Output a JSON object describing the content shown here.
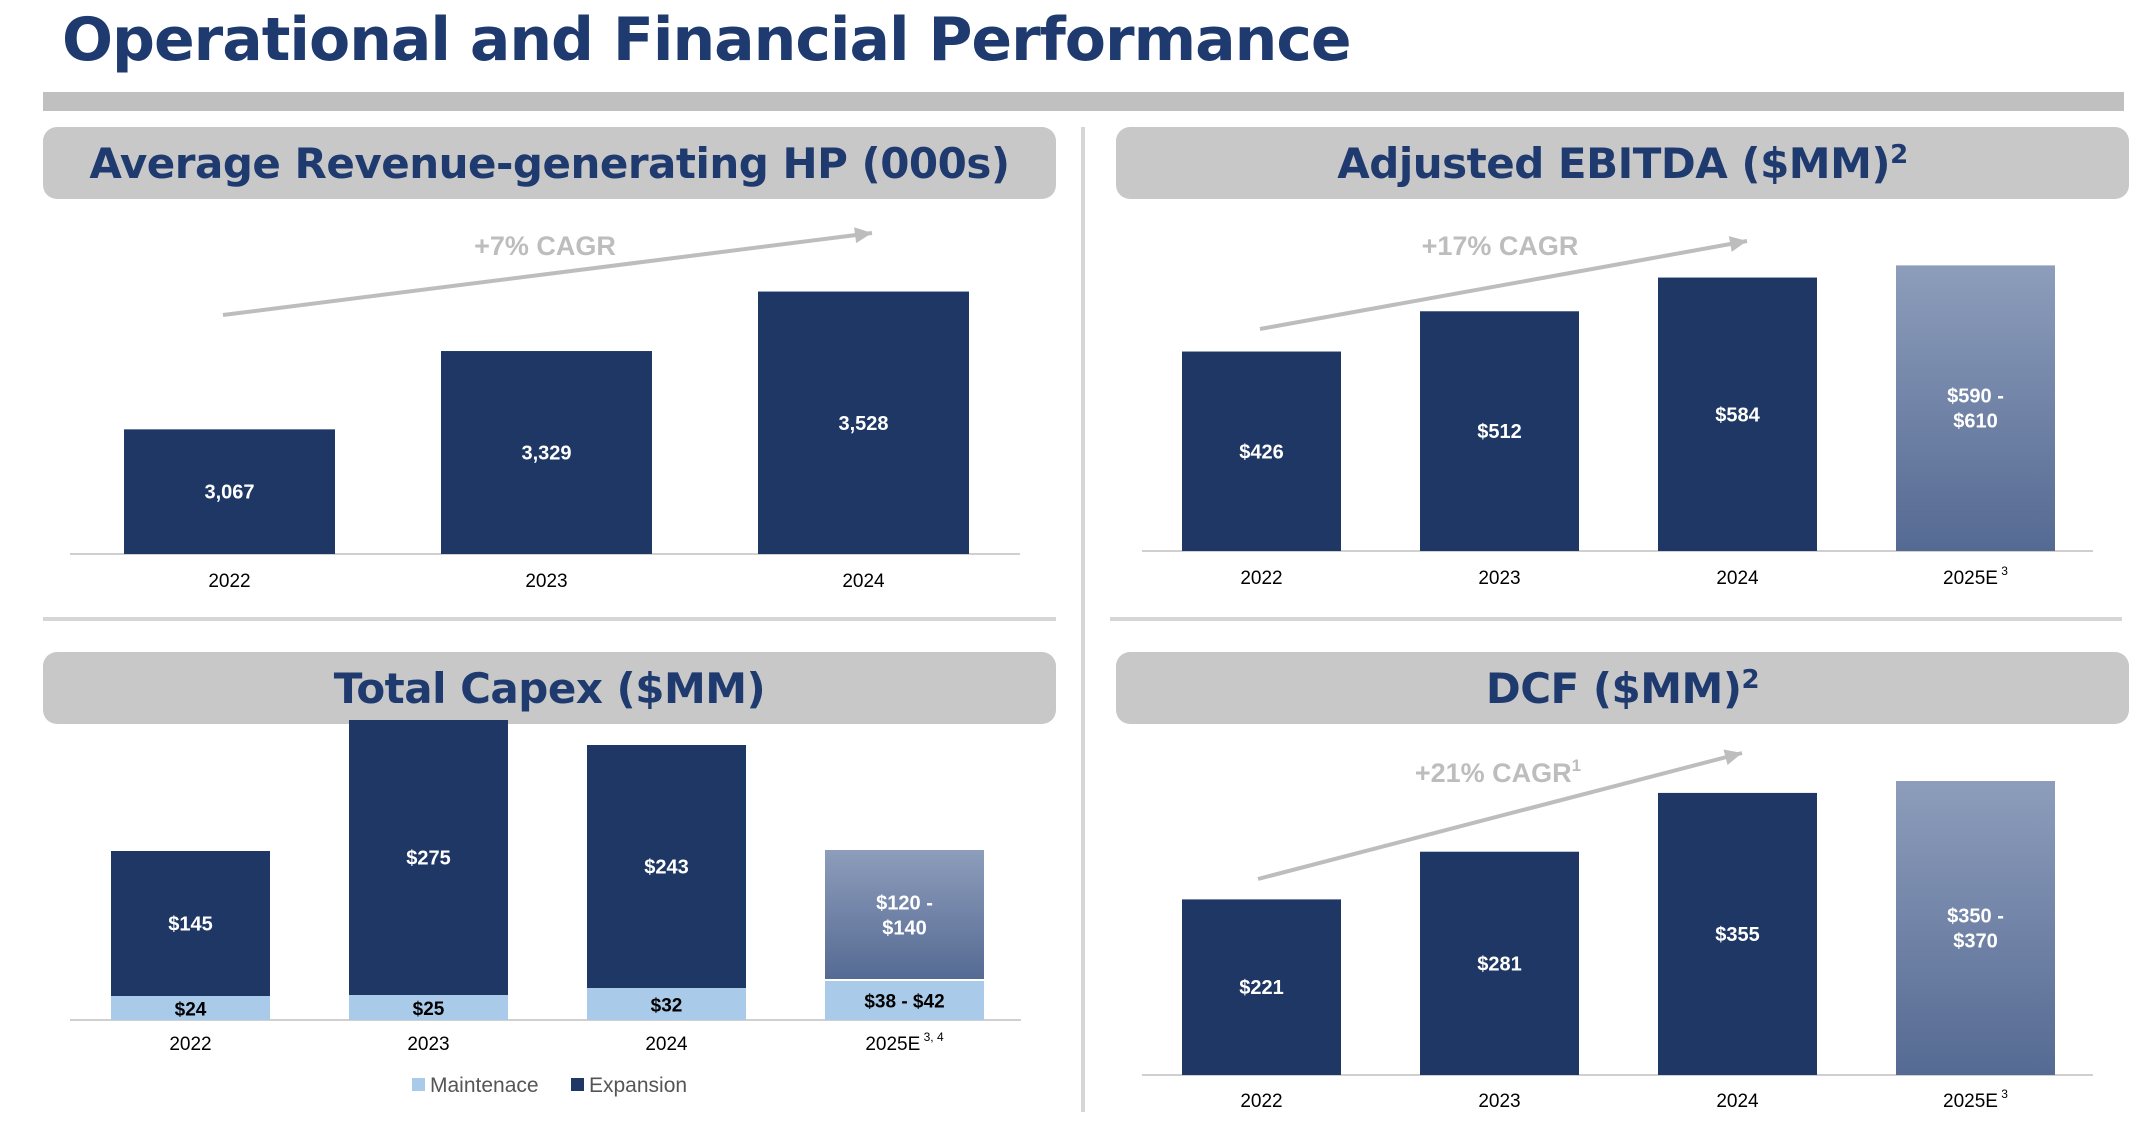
{
  "page": {
    "title": "Operational and Financial Performance"
  },
  "colors": {
    "title": "#1e3a6e",
    "navy": "#1f3764",
    "light_blue": "#a9cbe9",
    "forecast_top": "#8d9dbb",
    "forecast_bottom": "#556a93",
    "header_bg": "#c8c8c8",
    "cagr_text": "#bdbdbd",
    "rule": "#c0c0c0"
  },
  "chart_data": [
    {
      "id": "hp",
      "type": "bar",
      "title": "Average Revenue-generating HP (000s)",
      "title_sup": "",
      "categories": [
        "2022",
        "2023",
        "2024"
      ],
      "category_sups": [
        "",
        "",
        ""
      ],
      "values": [
        3067,
        3329,
        3528
      ],
      "labels": [
        "3,067",
        "3,329",
        "3,528"
      ],
      "forecast": [
        false,
        false,
        false
      ],
      "cagr": "+7% CAGR",
      "cagr_sup": "",
      "ylim": [
        2650,
        3580
      ]
    },
    {
      "id": "ebitda",
      "type": "bar",
      "title": "Adjusted EBITDA ($MM)",
      "title_sup": "2",
      "categories": [
        "2022",
        "2023",
        "2024",
        "2025E"
      ],
      "category_sups": [
        "",
        "",
        "",
        "3"
      ],
      "values": [
        426,
        512,
        584,
        610
      ],
      "labels": [
        "$426",
        "$512",
        "$584",
        "$590 -\n$610"
      ],
      "forecast": [
        false,
        false,
        false,
        true
      ],
      "cagr": "+17% CAGR",
      "cagr_sup": "",
      "ylim": [
        0,
        645
      ]
    },
    {
      "id": "capex",
      "type": "bar",
      "stacked": true,
      "title": "Total Capex ($MM)",
      "title_sup": "",
      "categories": [
        "2022",
        "2023",
        "2024",
        "2025E"
      ],
      "category_sups": [
        "",
        "",
        "",
        "3, 4"
      ],
      "series": [
        {
          "name": "Maintenace",
          "values": [
            24,
            25,
            32,
            40
          ],
          "labels": [
            "$24",
            "$25",
            "$32",
            "$38 - $42"
          ]
        },
        {
          "name": "Expansion",
          "values": [
            145,
            275,
            243,
            130
          ],
          "labels": [
            "$145",
            "$275",
            "$243",
            "$120 -\n$140"
          ]
        }
      ],
      "forecast": [
        false,
        false,
        false,
        true
      ],
      "legend": "bottom",
      "ylim": [
        0,
        300
      ]
    },
    {
      "id": "dcf",
      "type": "bar",
      "title": "DCF ($MM)",
      "title_sup": "2",
      "categories": [
        "2022",
        "2023",
        "2024",
        "2025E"
      ],
      "category_sups": [
        "",
        "",
        "",
        "3"
      ],
      "values": [
        221,
        281,
        355,
        370
      ],
      "labels": [
        "$221",
        "$281",
        "$355",
        "$350 -\n$370"
      ],
      "forecast": [
        false,
        false,
        false,
        true
      ],
      "cagr": "+21% CAGR",
      "cagr_sup": "1",
      "ylim": [
        0,
        370
      ]
    }
  ]
}
